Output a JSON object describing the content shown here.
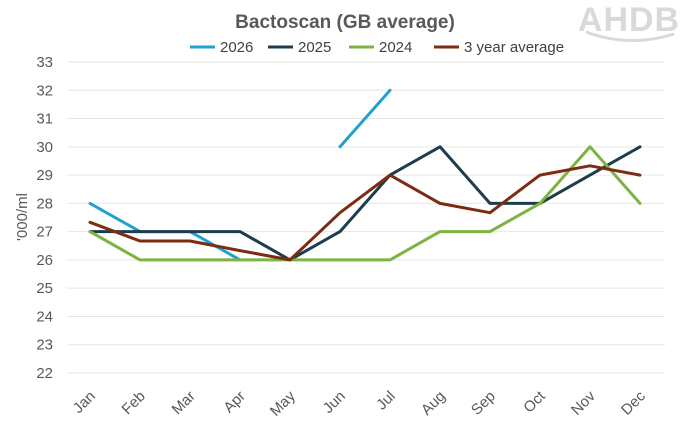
{
  "logo": {
    "text": "AHDB"
  },
  "chart_data": {
    "type": "line",
    "title": "Bactoscan (GB average)",
    "ylabel": "'000/ml",
    "xlabel": "",
    "categories": [
      "Jan",
      "Feb",
      "Mar",
      "Apr",
      "May",
      "Jun",
      "Jul",
      "Aug",
      "Sep",
      "Oct",
      "Nov",
      "Dec"
    ],
    "ylim": [
      22,
      33
    ],
    "yticks": [
      22,
      23,
      24,
      25,
      26,
      27,
      28,
      29,
      30,
      31,
      32,
      33
    ],
    "grid": true,
    "legend_position": "top",
    "series": [
      {
        "name": "2026",
        "color": "#1fa2d0",
        "values": [
          28,
          27,
          27,
          26,
          null,
          30,
          32,
          null,
          null,
          null,
          null,
          null
        ]
      },
      {
        "name": "2025",
        "color": "#1e3d4c",
        "values": [
          27,
          27,
          27,
          27,
          26,
          27,
          29,
          30,
          28,
          28,
          29,
          30
        ]
      },
      {
        "name": "2024",
        "color": "#7cb342",
        "values": [
          27,
          26,
          26,
          26,
          26,
          26,
          26,
          27,
          27,
          28,
          30,
          28
        ]
      },
      {
        "name": "3 year average",
        "color": "#7b2c12",
        "values": [
          27.33,
          26.67,
          26.67,
          26.33,
          26,
          27.67,
          29,
          28,
          27.67,
          29,
          29.33,
          29
        ]
      }
    ]
  }
}
